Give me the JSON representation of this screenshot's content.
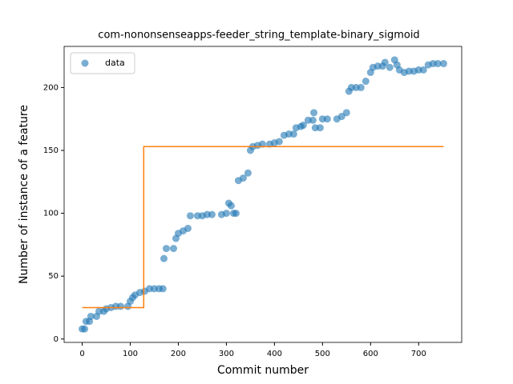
{
  "chart_data": {
    "type": "scatter",
    "title": "com-nononsenseapps-feeder_string_template-binary_sigmoid",
    "x_label": "Commit number",
    "y_label": "Number of instance of a feature",
    "legend": "upper left",
    "xlim": [
      -37.6,
      789.6
    ],
    "ylim": [
      -2.7,
      232.7
    ],
    "xticks": [
      0,
      100,
      200,
      300,
      400,
      500,
      600,
      700
    ],
    "yticks": [
      0,
      50,
      100,
      150,
      200
    ],
    "series": [
      {
        "name": "data",
        "color": "#1f77b4",
        "x": [
          0,
          5,
          8,
          15,
          18,
          30,
          35,
          45,
          50,
          60,
          70,
          80,
          95,
          100,
          105,
          110,
          120,
          130,
          140,
          150,
          160,
          168,
          170,
          175,
          190,
          195,
          200,
          210,
          220,
          225,
          240,
          250,
          260,
          270,
          290,
          300,
          305,
          310,
          315,
          320,
          325,
          335,
          345,
          350,
          355,
          365,
          375,
          390,
          400,
          410,
          420,
          430,
          440,
          445,
          455,
          460,
          470,
          480,
          482,
          485,
          495,
          500,
          510,
          530,
          540,
          550,
          555,
          560,
          570,
          580,
          590,
          600,
          605,
          615,
          625,
          630,
          640,
          650,
          655,
          660,
          670,
          680,
          690,
          700,
          710,
          720,
          730,
          740,
          752
        ],
        "values": [
          8,
          8,
          14,
          14,
          18,
          18,
          22,
          22,
          24,
          25,
          26,
          26,
          26,
          30,
          33,
          35,
          37,
          38,
          40,
          40,
          40,
          40,
          64,
          72,
          72,
          80,
          84,
          86,
          88,
          98,
          98,
          98,
          99,
          99,
          99,
          100,
          108,
          106,
          100,
          100,
          126,
          128,
          132,
          150,
          153,
          154,
          155,
          155,
          156,
          157,
          162,
          163,
          163,
          168,
          169,
          170,
          174,
          174,
          180,
          168,
          168,
          175,
          175,
          175,
          177,
          180,
          197,
          200,
          200,
          200,
          205,
          212,
          216,
          217,
          217,
          220,
          216,
          222,
          218,
          214,
          212,
          213,
          213,
          214,
          214,
          218,
          219,
          219,
          219
        ]
      },
      {
        "color": "#ff7f0e",
        "x": [
          0,
          128,
          128,
          752
        ],
        "values": [
          25,
          25,
          153,
          153
        ]
      }
    ]
  }
}
